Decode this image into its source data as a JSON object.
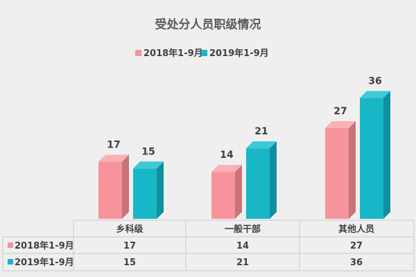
{
  "chart_data": {
    "type": "bar",
    "title": "受处分人员职级情况",
    "categories": [
      "乡科级",
      "一般干部",
      "其他人员"
    ],
    "series": [
      {
        "name": "2018年1-9月",
        "values": [
          17,
          14,
          27
        ],
        "color": "#f7939b",
        "side_color": "#c9727a",
        "top_color": "#f9b1b6"
      },
      {
        "name": "2019年1-9月",
        "values": [
          15,
          21,
          36
        ],
        "color": "#17b7c8",
        "side_color": "#10909e",
        "top_color": "#3ec9d6"
      }
    ],
    "legend_position": "top",
    "grid": false,
    "data_table": true
  }
}
